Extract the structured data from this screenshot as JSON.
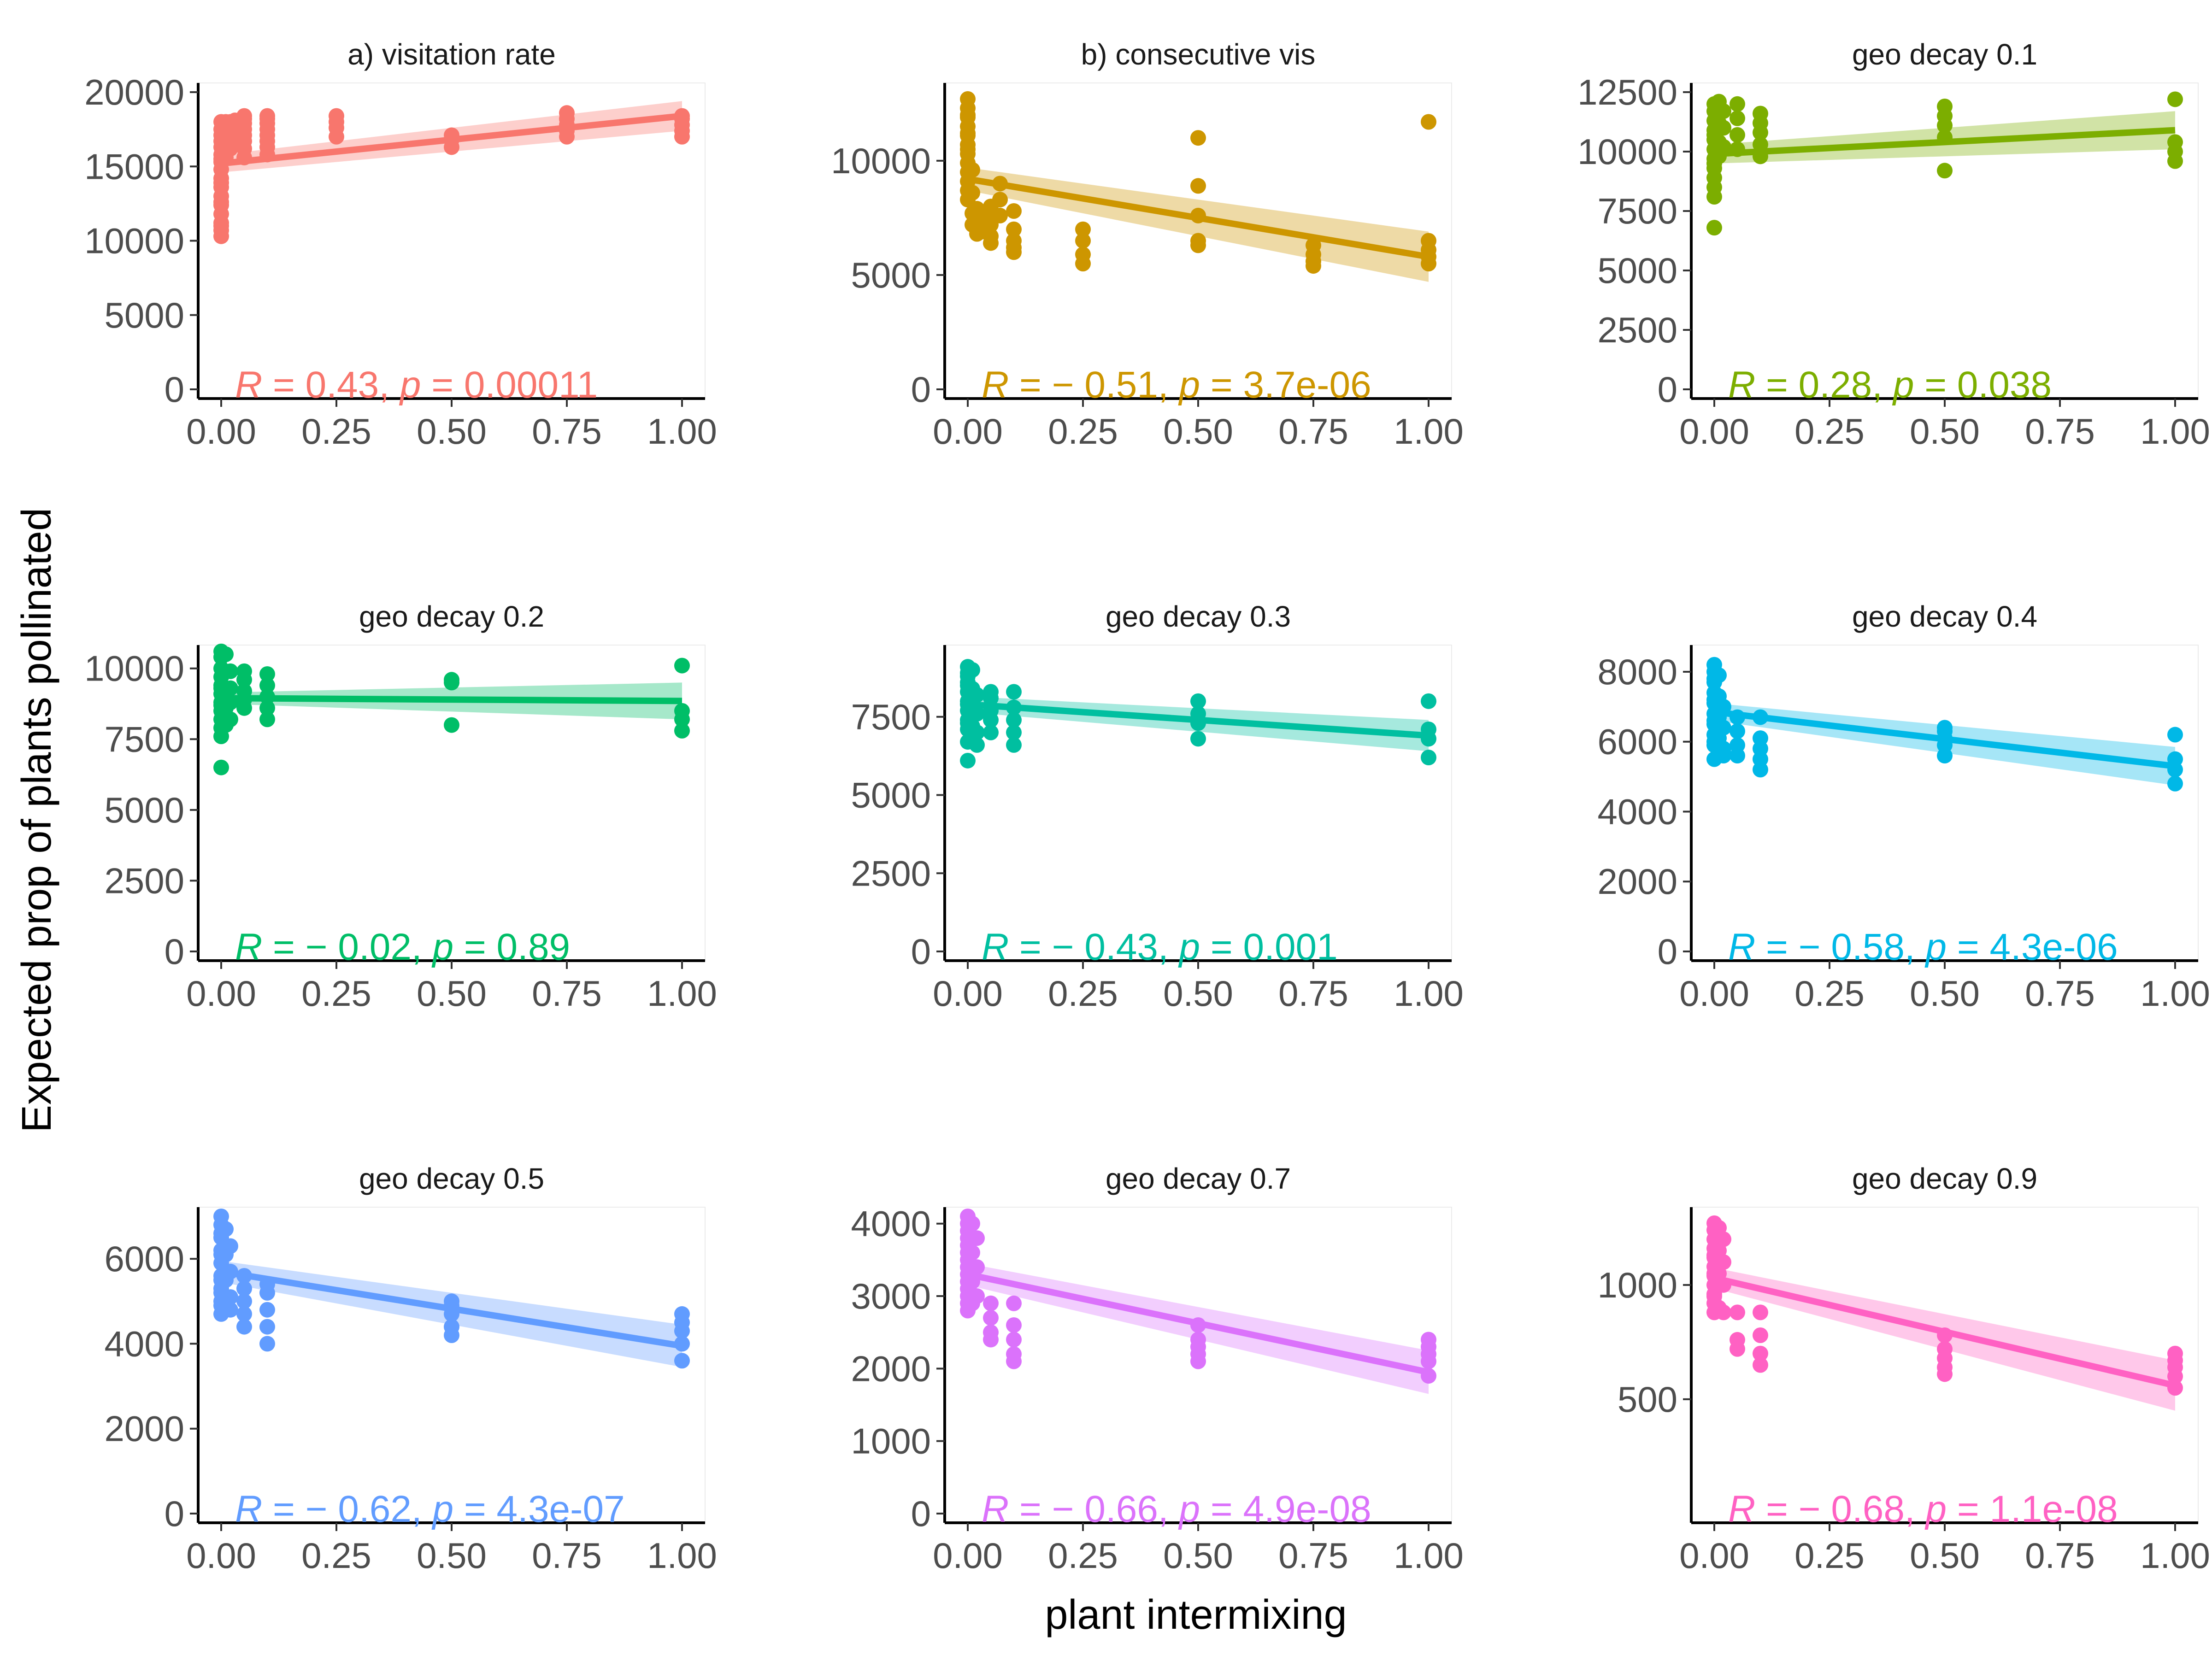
{
  "figure": {
    "ylabel": "Expected prop of plants pollinated",
    "xlabel": "plant intermixing"
  },
  "chart_data": [
    {
      "type": "scatter",
      "title": "a) visitation rate",
      "color": "#F8766D",
      "ylim": [
        0,
        20000
      ],
      "yticks": [
        0,
        5000,
        10000,
        15000,
        20000
      ],
      "xlim": [
        0,
        1
      ],
      "xticks": [
        "0.00",
        "0.25",
        "0.50",
        "0.75",
        "1.00"
      ],
      "stat": {
        "r": "0.43",
        "p": "0.00011"
      },
      "fit": {
        "x": [
          0,
          1
        ],
        "y": [
          15200,
          18400
        ],
        "ci_low": [
          14600,
          17400
        ],
        "ci_high": [
          15800,
          19400
        ]
      },
      "points": {
        "x": [
          0,
          0,
          0,
          0,
          0,
          0,
          0,
          0,
          0,
          0,
          0,
          0,
          0,
          0,
          0,
          0,
          0,
          0,
          0,
          0,
          0.01,
          0.01,
          0.01,
          0.01,
          0.01,
          0.01,
          0.02,
          0.02,
          0.02,
          0.02,
          0.02,
          0.03,
          0.03,
          0.03,
          0.05,
          0.05,
          0.05,
          0.05,
          0.05,
          0.05,
          0.05,
          0.05,
          0.1,
          0.1,
          0.1,
          0.1,
          0.1,
          0.1,
          0.1,
          0.1,
          0.25,
          0.25,
          0.25,
          0.25,
          0.5,
          0.5,
          0.5,
          0.75,
          0.75,
          0.75,
          0.75,
          0.75,
          1,
          1,
          1,
          1,
          1
        ],
        "y": [
          10300,
          10700,
          11200,
          11800,
          12400,
          13000,
          13600,
          14200,
          14800,
          15300,
          15800,
          16300,
          16700,
          17100,
          17500,
          18000,
          15500,
          13900,
          12600,
          11000,
          16800,
          17200,
          17600,
          18000,
          15600,
          16400,
          17000,
          17400,
          17800,
          16200,
          18000,
          16900,
          17500,
          18100,
          15600,
          16200,
          16700,
          17100,
          17500,
          17900,
          18200,
          18400,
          15800,
          16300,
          16700,
          17100,
          17500,
          17900,
          18200,
          18400,
          17000,
          17600,
          18000,
          18400,
          16300,
          16800,
          17100,
          17000,
          17400,
          17800,
          18200,
          18600,
          17000,
          17400,
          17800,
          18200,
          18400
        ]
      }
    },
    {
      "type": "scatter",
      "title": "b) consecutive vis",
      "color": "#CD9600",
      "ylim": [
        0,
        13000
      ],
      "yticks": [
        0,
        5000,
        10000
      ],
      "xlim": [
        0,
        1
      ],
      "xticks": [
        "0.00",
        "0.25",
        "0.50",
        "0.75",
        "1.00"
      ],
      "stat": {
        "r": "− 0.51",
        "p": "3.7e-06"
      },
      "fit": {
        "x": [
          0,
          1
        ],
        "y": [
          9200,
          5800
        ],
        "ci_low": [
          8700,
          4700
        ],
        "ci_high": [
          9700,
          6900
        ]
      },
      "points": {
        "x": [
          0,
          0,
          0,
          0,
          0,
          0,
          0,
          0,
          0,
          0,
          0,
          0,
          0,
          0,
          0,
          0.01,
          0.01,
          0.01,
          0.01,
          0.02,
          0.02,
          0.02,
          0.03,
          0.03,
          0.05,
          0.05,
          0.05,
          0.05,
          0.05,
          0.07,
          0.07,
          0.07,
          0.1,
          0.1,
          0.1,
          0.1,
          0.1,
          0.25,
          0.25,
          0.25,
          0.25,
          0.5,
          0.5,
          0.5,
          0.5,
          0.5,
          0.75,
          0.75,
          0.75,
          0.75,
          1,
          1,
          1,
          1,
          1
        ],
        "y": [
          12700,
          12300,
          11900,
          11500,
          11100,
          10700,
          10300,
          9900,
          9500,
          9100,
          8700,
          8300,
          10500,
          11200,
          12000,
          9600,
          8600,
          7700,
          7200,
          7900,
          7000,
          6800,
          7500,
          6900,
          8000,
          7500,
          7200,
          6700,
          6400,
          9000,
          8300,
          7600,
          7800,
          7000,
          6500,
          6200,
          6000,
          7000,
          6500,
          5900,
          5500,
          11000,
          8900,
          7600,
          6500,
          6300,
          6300,
          5900,
          5600,
          5400,
          11700,
          6500,
          6100,
          5800,
          5500
        ]
      }
    },
    {
      "type": "scatter",
      "title": "geo decay 0.1",
      "color": "#7CAE00",
      "ylim": [
        0,
        12500
      ],
      "yticks": [
        0,
        2500,
        5000,
        7500,
        10000,
        12500
      ],
      "xlim": [
        0,
        1
      ],
      "xticks": [
        "0.00",
        "0.25",
        "0.50",
        "0.75",
        "1.00"
      ],
      "stat": {
        "r": "0.28",
        "p": "0.038"
      },
      "fit": {
        "x": [
          0,
          1
        ],
        "y": [
          9900,
          10900
        ],
        "ci_low": [
          9500,
          10100
        ],
        "ci_high": [
          10300,
          11700
        ]
      },
      "points": {
        "x": [
          0,
          0,
          0,
          0,
          0,
          0,
          0,
          0,
          0,
          0,
          0,
          0,
          0,
          0,
          0.01,
          0.01,
          0.01,
          0.01,
          0.01,
          0.02,
          0.02,
          0.02,
          0.05,
          0.05,
          0.05,
          0.05,
          0.1,
          0.1,
          0.1,
          0.1,
          0.1,
          0.5,
          0.5,
          0.5,
          0.5,
          0.5,
          1,
          1,
          1,
          1
        ],
        "y": [
          6800,
          8100,
          8500,
          8900,
          9300,
          9700,
          10100,
          10500,
          10900,
          11300,
          11700,
          12000,
          9500,
          10700,
          10400,
          9800,
          11200,
          12100,
          10000,
          10200,
          11000,
          11700,
          10100,
          10700,
          11400,
          12000,
          9800,
          10300,
          10800,
          11200,
          11600,
          9200,
          10600,
          11100,
          11500,
          11900,
          12200,
          9600,
          10000,
          10400
        ]
      }
    },
    {
      "type": "scatter",
      "title": "geo decay 0.2",
      "color": "#00BE67",
      "ylim": [
        0,
        10500
      ],
      "yticks": [
        0,
        2500,
        5000,
        7500,
        10000
      ],
      "xlim": [
        0,
        1
      ],
      "xticks": [
        "0.00",
        "0.25",
        "0.50",
        "0.75",
        "1.00"
      ],
      "stat": {
        "r": "− 0.02",
        "p": "0.89"
      },
      "fit": {
        "x": [
          0,
          1
        ],
        "y": [
          8950,
          8850
        ],
        "ci_low": [
          8750,
          8200
        ],
        "ci_high": [
          9150,
          9500
        ]
      },
      "points": {
        "x": [
          0,
          0,
          0,
          0,
          0,
          0,
          0,
          0,
          0,
          0,
          0,
          0,
          0,
          0,
          0.01,
          0.01,
          0.01,
          0.01,
          0.02,
          0.02,
          0.02,
          0.02,
          0.05,
          0.05,
          0.05,
          0.05,
          0.05,
          0.1,
          0.1,
          0.1,
          0.1,
          0.1,
          0.5,
          0.5,
          0.5,
          1,
          1,
          1,
          1
        ],
        "y": [
          6500,
          7600,
          7900,
          8200,
          8500,
          8800,
          9100,
          9400,
          9700,
          10000,
          10400,
          10600,
          8700,
          9300,
          10500,
          9200,
          8600,
          8000,
          9900,
          9300,
          8800,
          8200,
          9600,
          9200,
          8900,
          8600,
          9900,
          8200,
          8600,
          9000,
          9400,
          9800,
          8000,
          9500,
          9600,
          10100,
          8500,
          8200,
          7800
        ]
      }
    },
    {
      "type": "scatter",
      "title": "geo decay 0.3",
      "color": "#00BFA0",
      "ylim": [
        0,
        9500
      ],
      "yticks": [
        0,
        2500,
        5000,
        7500
      ],
      "xlim": [
        0,
        1
      ],
      "xticks": [
        "0.00",
        "0.25",
        "0.50",
        "0.75",
        "1.00"
      ],
      "stat": {
        "r": "− 0.43",
        "p": "0.001"
      },
      "fit": {
        "x": [
          0,
          1
        ],
        "y": [
          7900,
          6900
        ],
        "ci_low": [
          7650,
          6400
        ],
        "ci_high": [
          8150,
          7400
        ]
      },
      "points": {
        "x": [
          0,
          0,
          0,
          0,
          0,
          0,
          0,
          0,
          0,
          0,
          0,
          0,
          0,
          0,
          0.01,
          0.01,
          0.01,
          0.01,
          0.02,
          0.02,
          0.02,
          0.02,
          0.05,
          0.05,
          0.05,
          0.05,
          0.05,
          0.1,
          0.1,
          0.1,
          0.1,
          0.1,
          0.5,
          0.5,
          0.5,
          0.5,
          1,
          1,
          1,
          1
        ],
        "y": [
          6100,
          6700,
          7100,
          7400,
          7700,
          8000,
          8300,
          8600,
          8900,
          9100,
          7300,
          7900,
          8500,
          8800,
          9000,
          8400,
          7800,
          7200,
          8200,
          7600,
          7000,
          6600,
          8100,
          7700,
          7400,
          7000,
          8300,
          6600,
          7000,
          7400,
          7800,
          8300,
          6800,
          7300,
          7600,
          8000,
          8000,
          7100,
          6800,
          6200
        ]
      }
    },
    {
      "type": "scatter",
      "title": "geo decay 0.4",
      "color": "#00B8E7",
      "ylim": [
        0,
        8500
      ],
      "yticks": [
        0,
        2000,
        4000,
        6000,
        8000
      ],
      "xlim": [
        0,
        1
      ],
      "xticks": [
        "0.00",
        "0.25",
        "0.50",
        "0.75",
        "1.00"
      ],
      "stat": {
        "r": "− 0.58",
        "p": "4.3e-06"
      },
      "fit": {
        "x": [
          0,
          1
        ],
        "y": [
          6850,
          5300
        ],
        "ci_low": [
          6600,
          4750
        ],
        "ci_high": [
          7100,
          5850
        ]
      },
      "points": {
        "x": [
          0,
          0,
          0,
          0,
          0,
          0,
          0,
          0,
          0,
          0,
          0,
          0,
          0,
          0,
          0.01,
          0.01,
          0.01,
          0.01,
          0.02,
          0.02,
          0.02,
          0.02,
          0.05,
          0.05,
          0.05,
          0.05,
          0.1,
          0.1,
          0.1,
          0.1,
          0.1,
          0.5,
          0.5,
          0.5,
          0.5,
          0.5,
          1,
          1,
          1,
          1
        ],
        "y": [
          5500,
          5900,
          6200,
          6500,
          6800,
          7100,
          7400,
          7700,
          8000,
          8200,
          6000,
          6600,
          7200,
          7800,
          7900,
          7300,
          6700,
          6100,
          7000,
          6400,
          5800,
          5600,
          6700,
          6300,
          5900,
          5600,
          5200,
          5500,
          5800,
          6100,
          6700,
          5600,
          5900,
          6100,
          6400,
          6300,
          6200,
          5500,
          5200,
          4800
        ]
      }
    },
    {
      "type": "scatter",
      "title": "geo decay 0.5",
      "color": "#619CFF",
      "ylim": [
        0,
        7000
      ],
      "yticks": [
        0,
        2000,
        4000,
        6000
      ],
      "xlim": [
        0,
        1
      ],
      "xticks": [
        "0.00",
        "0.25",
        "0.50",
        "0.75",
        "1.00"
      ],
      "stat": {
        "r": "− 0.62",
        "p": "4.3e-07"
      },
      "fit": {
        "x": [
          0,
          1
        ],
        "y": [
          5700,
          3950
        ],
        "ci_low": [
          5450,
          3450
        ],
        "ci_high": [
          5950,
          4450
        ]
      },
      "points": {
        "x": [
          0,
          0,
          0,
          0,
          0,
          0,
          0,
          0,
          0,
          0,
          0,
          0,
          0,
          0,
          0.01,
          0.01,
          0.01,
          0.01,
          0.02,
          0.02,
          0.02,
          0.02,
          0.05,
          0.05,
          0.05,
          0.05,
          0.05,
          0.1,
          0.1,
          0.1,
          0.1,
          0.1,
          0.5,
          0.5,
          0.5,
          0.5,
          0.5,
          1,
          1,
          1,
          1,
          1
        ],
        "y": [
          4700,
          5000,
          5300,
          5600,
          5900,
          6200,
          6500,
          6800,
          7000,
          4900,
          5500,
          6100,
          6600,
          5200,
          6700,
          6100,
          5500,
          4900,
          6300,
          5700,
          5100,
          4800,
          5300,
          5000,
          4700,
          4400,
          5600,
          4000,
          4400,
          4800,
          5200,
          5400,
          4200,
          4400,
          4700,
          5000,
          4900,
          4700,
          4500,
          4300,
          4000,
          3600
        ]
      }
    },
    {
      "type": "scatter",
      "title": "geo decay 0.7",
      "color": "#DB72FB",
      "ylim": [
        0,
        4100
      ],
      "yticks": [
        0,
        1000,
        2000,
        3000,
        4000
      ],
      "xlim": [
        0,
        1
      ],
      "xticks": [
        "0.00",
        "0.25",
        "0.50",
        "0.75",
        "1.00"
      ],
      "stat": {
        "r": "− 0.66",
        "p": "4.9e-08"
      },
      "fit": {
        "x": [
          0,
          1
        ],
        "y": [
          3300,
          1950
        ],
        "ci_low": [
          3150,
          1650
        ],
        "ci_high": [
          3450,
          2250
        ]
      },
      "points": {
        "x": [
          0,
          0,
          0,
          0,
          0,
          0,
          0,
          0,
          0,
          0,
          0,
          0,
          0,
          0,
          0.01,
          0.01,
          0.01,
          0.01,
          0.02,
          0.02,
          0.02,
          0.05,
          0.05,
          0.05,
          0.05,
          0.1,
          0.1,
          0.1,
          0.1,
          0.1,
          0.5,
          0.5,
          0.5,
          0.5,
          0.5,
          1,
          1,
          1,
          1,
          1
        ],
        "y": [
          2800,
          3000,
          3200,
          3400,
          3600,
          3800,
          4000,
          4100,
          2900,
          3300,
          3700,
          3900,
          3500,
          3100,
          4000,
          3600,
          3200,
          2900,
          3800,
          3400,
          3000,
          2900,
          2700,
          2500,
          2400,
          2900,
          2600,
          2400,
          2200,
          2100,
          2600,
          2400,
          2300,
          2200,
          2100,
          2400,
          2300,
          2200,
          2100,
          1900
        ]
      }
    },
    {
      "type": "scatter",
      "title": "geo decay 0.9",
      "color": "#FF61C3",
      "ylim": [
        0,
        1300
      ],
      "yticks": [
        500,
        1000
      ],
      "xlim": [
        0,
        1
      ],
      "xticks": [
        "0.00",
        "0.25",
        "0.50",
        "0.75",
        "1.00"
      ],
      "stat": {
        "r": "− 0.68",
        "p": "1.1e-08"
      },
      "fit": {
        "x": [
          0,
          1
        ],
        "y": [
          1030,
          560
        ],
        "ci_low": [
          985,
          450
        ],
        "ci_high": [
          1075,
          670
        ]
      },
      "points": {
        "x": [
          0,
          0,
          0,
          0,
          0,
          0,
          0,
          0,
          0,
          0,
          0,
          0,
          0,
          0,
          0.01,
          0.01,
          0.01,
          0.01,
          0.02,
          0.02,
          0.02,
          0.02,
          0.05,
          0.05,
          0.05,
          0.1,
          0.1,
          0.1,
          0.1,
          0.5,
          0.5,
          0.5,
          0.5,
          0.5,
          1,
          1,
          1,
          1,
          1
        ],
        "y": [
          880,
          920,
          960,
          1000,
          1040,
          1080,
          1120,
          1160,
          1200,
          1240,
          1270,
          1050,
          950,
          1130,
          1250,
          1150,
          1050,
          900,
          1200,
          1100,
          1000,
          880,
          880,
          760,
          720,
          880,
          780,
          700,
          650,
          780,
          720,
          680,
          640,
          610,
          700,
          670,
          640,
          600,
          550
        ]
      }
    }
  ]
}
